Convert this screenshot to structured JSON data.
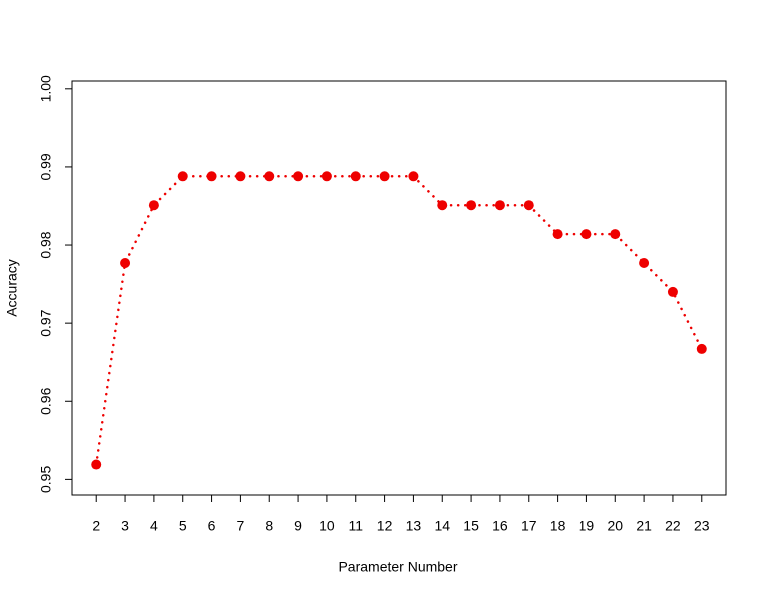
{
  "chart_data": {
    "type": "line",
    "x_label": "Parameter Number",
    "y_label": "Accuracy",
    "x": [
      2,
      3,
      4,
      5,
      6,
      7,
      8,
      9,
      10,
      11,
      12,
      13,
      14,
      15,
      16,
      17,
      18,
      19,
      20,
      21,
      22,
      23
    ],
    "series": [
      {
        "color": "#ee0000",
        "values": [
          0.9519,
          0.9777,
          0.9851,
          0.9888,
          0.9888,
          0.9888,
          0.9888,
          0.9888,
          0.9888,
          0.9888,
          0.9888,
          0.9888,
          0.9851,
          0.9851,
          0.9851,
          0.9851,
          0.9814,
          0.9814,
          0.9814,
          0.9777,
          0.974,
          0.9667
        ]
      }
    ],
    "xlim": [
      1.16,
      23.84
    ],
    "xticks": [
      2,
      3,
      4,
      5,
      6,
      7,
      8,
      9,
      10,
      11,
      12,
      13,
      14,
      15,
      16,
      17,
      18,
      19,
      20,
      21,
      22,
      23
    ],
    "ylim": [
      0.948,
      1.001
    ],
    "yticks": [
      0.95,
      0.96,
      0.97,
      0.98,
      0.99,
      {
        "value": 1,
        "label": "1.00"
      }
    ],
    "line_style": "dotted",
    "markers": true
  }
}
